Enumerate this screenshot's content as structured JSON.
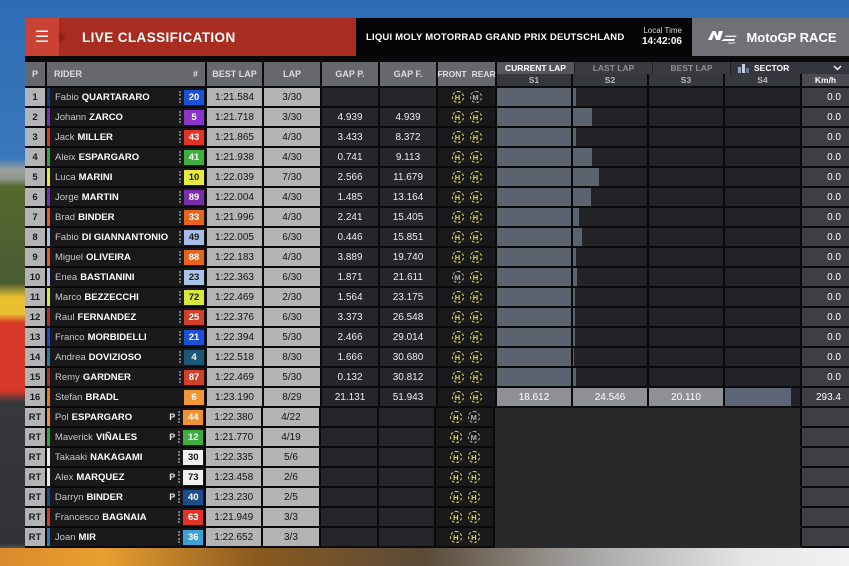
{
  "header": {
    "title": "LIVE CLASSIFICATION",
    "event": "LIQUI MOLY MOTORRAD GRAND PRIX DEUTSCHLAND",
    "local_time_label": "Local Time",
    "local_time": "14:42:06",
    "session": "MotoGP RACE"
  },
  "table_head": {
    "p": "P",
    "rider": "RIDER",
    "num": "#",
    "best": "BEST LAP",
    "lap": "LAP",
    "gap_p": "GAP P.",
    "gap_f": "GAP F.",
    "front": "FRONT",
    "rear": "REAR"
  },
  "panel": {
    "tabs": [
      {
        "label": "CURRENT LAP",
        "active": true
      },
      {
        "label": "LAST LAP",
        "active": false
      },
      {
        "label": "BEST LAP",
        "active": false
      }
    ],
    "selector": "SECTOR",
    "cols": {
      "s1": "S1",
      "s2": "S2",
      "s3": "S3",
      "s4": "S4",
      "kmh": "Km/h"
    }
  },
  "colors": {
    "accent_red": "#a82c20",
    "tire_hard": "#e3df4a",
    "tire_medium": "#b0b4b4",
    "sector_bar": "#5c6370"
  },
  "rows": [
    {
      "pos": "1",
      "first": "Fabio",
      "last": "QUARTARARO",
      "pit": false,
      "num": "20",
      "num_bg": "#1d50d8",
      "num_fg": "#ffffff",
      "stripe": "#1f3a7a",
      "best": "1:21.584",
      "lap": "3/30",
      "gap_p": "",
      "gap_f": "",
      "front": "H",
      "rear": "M",
      "mode": "bars",
      "s1": 1,
      "s2": 0.04,
      "s3": 0,
      "s4": 0,
      "kmh": "0.0"
    },
    {
      "pos": "2",
      "first": "Johann",
      "last": "ZARCO",
      "pit": false,
      "num": "5",
      "num_bg": "#8a35c8",
      "num_fg": "#ffffff",
      "stripe": "#7b2ea8",
      "best": "1:21.718",
      "lap": "3/30",
      "gap_p": "4.939",
      "gap_f": "4.939",
      "front": "H",
      "rear": "H",
      "mode": "bars",
      "s1": 1,
      "s2": 0.25,
      "s3": 0,
      "s4": 0,
      "kmh": "0.0"
    },
    {
      "pos": "3",
      "first": "Jack",
      "last": "MILLER",
      "pit": false,
      "num": "43",
      "num_bg": "#e03428",
      "num_fg": "#ffffff",
      "stripe": "#d8362a",
      "best": "1:21.865",
      "lap": "4/30",
      "gap_p": "3.433",
      "gap_f": "8.372",
      "front": "H",
      "rear": "H",
      "mode": "bars",
      "s1": 1,
      "s2": 0.04,
      "s3": 0,
      "s4": 0,
      "kmh": "0.0"
    },
    {
      "pos": "4",
      "first": "Aleix",
      "last": "ESPARGARO",
      "pit": false,
      "num": "41",
      "num_bg": "#3fae3f",
      "num_fg": "#ffffff",
      "stripe": "#35a83f",
      "best": "1:21.938",
      "lap": "4/30",
      "gap_p": "0.741",
      "gap_f": "9.113",
      "front": "H",
      "rear": "H",
      "mode": "bars",
      "s1": 1,
      "s2": 0.25,
      "s3": 0,
      "s4": 0,
      "kmh": "0.0"
    },
    {
      "pos": "5",
      "first": "Luca",
      "last": "MARINI",
      "pit": false,
      "num": "10",
      "num_bg": "#e8ea40",
      "num_fg": "#1a1a1a",
      "stripe": "#e8e838",
      "best": "1:22.039",
      "lap": "7/30",
      "gap_p": "2.566",
      "gap_f": "11.679",
      "front": "H",
      "rear": "H",
      "mode": "bars",
      "s1": 1,
      "s2": 0.35,
      "s3": 0,
      "s4": 0,
      "kmh": "0.0"
    },
    {
      "pos": "6",
      "first": "Jorge",
      "last": "MARTIN",
      "pit": false,
      "num": "89",
      "num_bg": "#7b2ea8",
      "num_fg": "#ffffff",
      "stripe": "#7b2ea8",
      "best": "1:22.004",
      "lap": "4/30",
      "gap_p": "1.485",
      "gap_f": "13.164",
      "front": "H",
      "rear": "H",
      "mode": "bars",
      "s1": 1,
      "s2": 0.24,
      "s3": 0,
      "s4": 0,
      "kmh": "0.0"
    },
    {
      "pos": "7",
      "first": "Brad",
      "last": "BINDER",
      "pit": false,
      "num": "33",
      "num_bg": "#e8641e",
      "num_fg": "#ffffff",
      "stripe": "#e86018",
      "best": "1:21.996",
      "lap": "4/30",
      "gap_p": "2.241",
      "gap_f": "15.405",
      "front": "H",
      "rear": "H",
      "mode": "bars",
      "s1": 1,
      "s2": 0.08,
      "s3": 0,
      "s4": 0,
      "kmh": "0.0"
    },
    {
      "pos": "8",
      "first": "Fabio",
      "last": "DI GIANNANTONIO",
      "pit": false,
      "num": "49",
      "num_bg": "#a8bce8",
      "num_fg": "#1a1a1a",
      "stripe": "#a8c0e8",
      "best": "1:22.005",
      "lap": "6/30",
      "gap_p": "0.446",
      "gap_f": "15.851",
      "front": "H",
      "rear": "H",
      "mode": "bars",
      "s1": 1,
      "s2": 0.12,
      "s3": 0,
      "s4": 0,
      "kmh": "0.0"
    },
    {
      "pos": "9",
      "first": "Miguel",
      "last": "OLIVEIRA",
      "pit": false,
      "num": "88",
      "num_bg": "#e8641e",
      "num_fg": "#ffffff",
      "stripe": "#e86018",
      "best": "1:22.183",
      "lap": "4/30",
      "gap_p": "3.889",
      "gap_f": "19.740",
      "front": "H",
      "rear": "H",
      "mode": "bars",
      "s1": 1,
      "s2": 0.04,
      "s3": 0,
      "s4": 0,
      "kmh": "0.0"
    },
    {
      "pos": "10",
      "first": "Enea",
      "last": "BASTIANINI",
      "pit": false,
      "num": "23",
      "num_bg": "#a8c4e8",
      "num_fg": "#1a1a1a",
      "stripe": "#a8c0e8",
      "best": "1:22.363",
      "lap": "6/30",
      "gap_p": "1.871",
      "gap_f": "21.611",
      "front": "M",
      "rear": "H",
      "mode": "bars",
      "s1": 1,
      "s2": 0.06,
      "s3": 0,
      "s4": 0,
      "kmh": "0.0"
    },
    {
      "pos": "11",
      "first": "Marco",
      "last": "BEZZECCHI",
      "pit": false,
      "num": "72",
      "num_bg": "#d8e83a",
      "num_fg": "#1a1a1a",
      "stripe": "#d8e838",
      "best": "1:22.469",
      "lap": "2/30",
      "gap_p": "1.564",
      "gap_f": "23.175",
      "front": "H",
      "rear": "H",
      "mode": "bars",
      "s1": 1,
      "s2": 0.03,
      "s3": 0,
      "s4": 0,
      "kmh": "0.0"
    },
    {
      "pos": "12",
      "first": "Raul",
      "last": "FERNANDEZ",
      "pit": false,
      "num": "25",
      "num_bg": "#d0402a",
      "num_fg": "#ffffff",
      "stripe": "#b03028",
      "best": "1:22.376",
      "lap": "6/30",
      "gap_p": "3.373",
      "gap_f": "26.548",
      "front": "H",
      "rear": "H",
      "mode": "bars",
      "s1": 1,
      "s2": 0.03,
      "s3": 0,
      "s4": 0,
      "kmh": "0.0"
    },
    {
      "pos": "13",
      "first": "Franco",
      "last": "MORBIDELLI",
      "pit": false,
      "num": "21",
      "num_bg": "#1d50d8",
      "num_fg": "#ffffff",
      "stripe": "#2448c8",
      "best": "1:22.394",
      "lap": "5/30",
      "gap_p": "2.466",
      "gap_f": "29.014",
      "front": "H",
      "rear": "H",
      "mode": "bars",
      "s1": 1,
      "s2": 0.03,
      "s3": 0,
      "s4": 0,
      "kmh": "0.0"
    },
    {
      "pos": "14",
      "first": "Andrea",
      "last": "DOVIZIOSO",
      "pit": false,
      "num": "4",
      "num_bg": "#1d5878",
      "num_fg": "#ffffff",
      "stripe": "#2a7a9a",
      "best": "1:22.518",
      "lap": "8/30",
      "gap_p": "1.666",
      "gap_f": "30.680",
      "front": "H",
      "rear": "H",
      "mode": "bars",
      "s1": 1,
      "s2": 0.02,
      "s3": 0,
      "s4": 0,
      "kmh": "0.0"
    },
    {
      "pos": "15",
      "first": "Remy",
      "last": "GARDNER",
      "pit": false,
      "num": "87",
      "num_bg": "#d0402a",
      "num_fg": "#ffffff",
      "stripe": "#b03028",
      "best": "1:22.469",
      "lap": "5/30",
      "gap_p": "0.132",
      "gap_f": "30.812",
      "front": "H",
      "rear": "H",
      "mode": "bars",
      "s1": 1,
      "s2": 0.04,
      "s3": 0,
      "s4": 0,
      "kmh": "0.0"
    },
    {
      "pos": "16",
      "first": "Stefan",
      "last": "BRADL",
      "pit": false,
      "num": "6",
      "num_bg": "#f09838",
      "num_fg": "#ffffff",
      "stripe": "#e87818",
      "best": "1:23.190",
      "lap": "8/29",
      "gap_p": "21.131",
      "gap_f": "51.943",
      "front": "H",
      "rear": "H",
      "mode": "times",
      "dots": false,
      "s_times": [
        "18.612",
        "24.546",
        "20.110"
      ],
      "s4": 0.88,
      "kmh": "293.4"
    },
    {
      "pos": "RT",
      "first": "Pol",
      "last": "ESPARGARO",
      "pit": true,
      "num": "44",
      "num_bg": "#f09030",
      "num_fg": "#ffffff",
      "stripe": "#f09030",
      "best": "1:22.380",
      "lap": "4/22",
      "gap_p": "",
      "gap_f": "",
      "front": "H",
      "rear": "M",
      "mode": "none",
      "kmh": ""
    },
    {
      "pos": "RT",
      "first": "Maverick",
      "last": "VIÑALES",
      "pit": true,
      "num": "12",
      "num_bg": "#3fae3f",
      "num_fg": "#ffffff",
      "stripe": "#35a83f",
      "best": "1:21.770",
      "lap": "4/19",
      "gap_p": "",
      "gap_f": "",
      "front": "H",
      "rear": "M",
      "mode": "none",
      "kmh": ""
    },
    {
      "pos": "RT",
      "first": "Takaaki",
      "last": "NAKAGAMI",
      "pit": false,
      "num": "30",
      "num_bg": "#f0f0f0",
      "num_fg": "#1a1a1a",
      "stripe": "#e8e8e8",
      "best": "1:22.335",
      "lap": "5/6",
      "gap_p": "",
      "gap_f": "",
      "front": "H",
      "rear": "H",
      "mode": "none",
      "kmh": ""
    },
    {
      "pos": "RT",
      "first": "Alex",
      "last": "MARQUEZ",
      "pit": true,
      "num": "73",
      "num_bg": "#f0f0f0",
      "num_fg": "#1a1a1a",
      "stripe": "#e8e8e8",
      "best": "1:23.458",
      "lap": "2/6",
      "gap_p": "",
      "gap_f": "",
      "front": "H",
      "rear": "H",
      "mode": "none",
      "kmh": ""
    },
    {
      "pos": "RT",
      "first": "Darryn",
      "last": "BINDER",
      "pit": true,
      "num": "40",
      "num_bg": "#1d4e8a",
      "num_fg": "#ffffff",
      "stripe": "#1d4e8a",
      "best": "1:23.230",
      "lap": "2/5",
      "gap_p": "",
      "gap_f": "",
      "front": "H",
      "rear": "H",
      "mode": "none",
      "kmh": ""
    },
    {
      "pos": "RT",
      "first": "Francesco",
      "last": "BAGNAIA",
      "pit": false,
      "num": "63",
      "num_bg": "#e03428",
      "num_fg": "#ffffff",
      "stripe": "#d8362a",
      "best": "1:21.949",
      "lap": "3/3",
      "gap_p": "",
      "gap_f": "",
      "front": "H",
      "rear": "H",
      "mode": "none",
      "kmh": ""
    },
    {
      "pos": "RT",
      "first": "Joan",
      "last": "MIR",
      "pit": false,
      "num": "36",
      "num_bg": "#3fa0d8",
      "num_fg": "#ffffff",
      "stripe": "#2878b8",
      "best": "1:22.652",
      "lap": "3/3",
      "gap_p": "",
      "gap_f": "",
      "front": "H",
      "rear": "H",
      "mode": "none",
      "kmh": ""
    }
  ]
}
